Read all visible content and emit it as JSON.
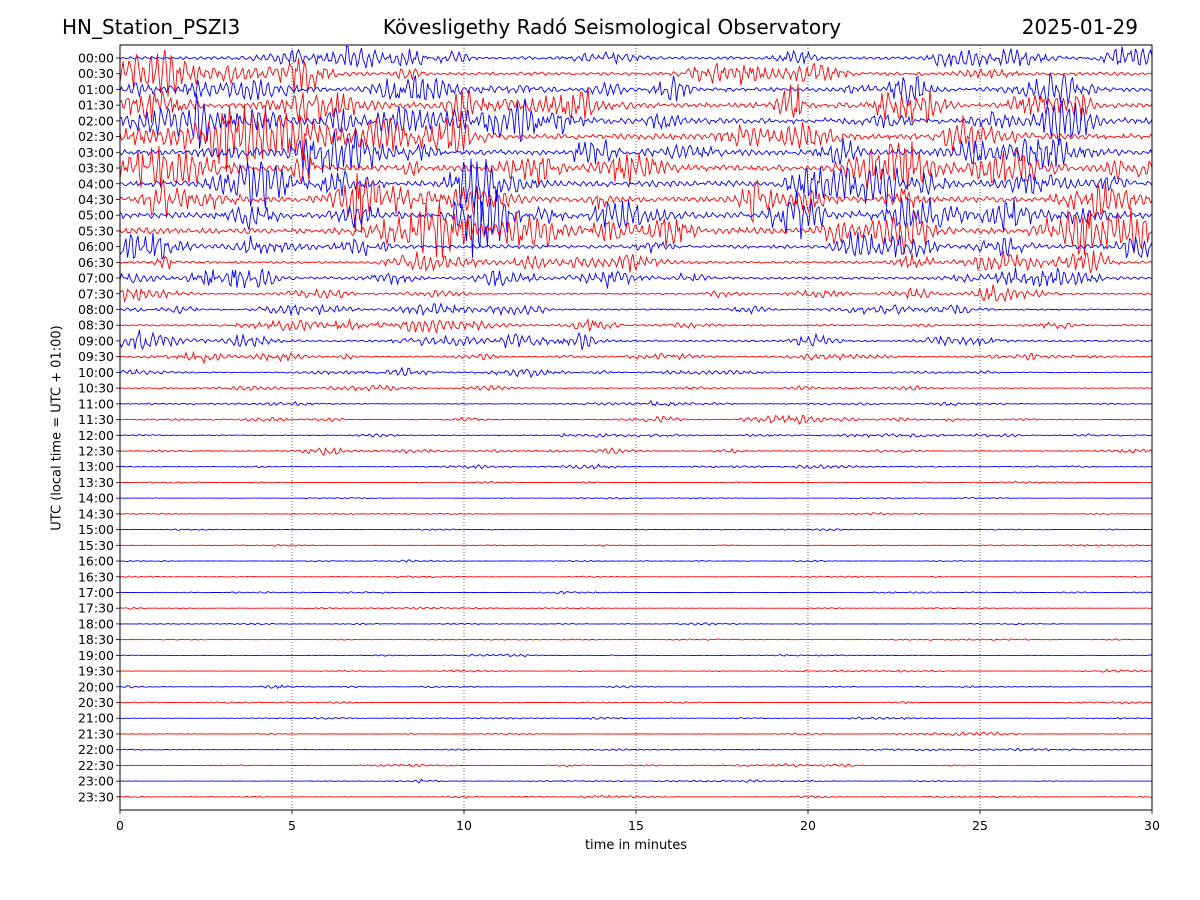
{
  "header": {
    "station": "HN_Station_PSZI3",
    "observatory": "Kövesligethy Radó Seismological Observatory",
    "date": "2025-01-29"
  },
  "chart_data": {
    "type": "line",
    "chart_kind": "helicorder",
    "title": "Kövesligethy Radó Seismological Observatory",
    "xlabel": "time in minutes",
    "ylabel": "UTC (local time = UTC + 01:00)",
    "xlim": [
      0,
      30
    ],
    "x_ticks": [
      "0",
      "5",
      "10",
      "15",
      "20",
      "25",
      "30"
    ],
    "vertical_gridlines_at_minutes": [
      5,
      10,
      15,
      20,
      25
    ],
    "grid": "vertical dotted",
    "row_labels": [
      "00:00",
      "00:30",
      "01:00",
      "01:30",
      "02:00",
      "02:30",
      "03:00",
      "03:30",
      "04:00",
      "04:30",
      "05:00",
      "05:30",
      "06:00",
      "06:30",
      "07:00",
      "07:30",
      "08:00",
      "08:30",
      "09:00",
      "09:30",
      "10:00",
      "10:30",
      "11:00",
      "11:30",
      "12:00",
      "12:30",
      "13:00",
      "13:30",
      "14:00",
      "14:30",
      "15:00",
      "15:30",
      "16:00",
      "16:30",
      "17:00",
      "17:30",
      "18:00",
      "18:30",
      "19:00",
      "19:30",
      "20:00",
      "20:30",
      "21:00",
      "21:30",
      "22:00",
      "22:30",
      "23:00",
      "23:30"
    ],
    "trace_colors": [
      "#0000ff",
      "#ff0000"
    ],
    "relative_amplitude": [
      0.7,
      0.8,
      1.0,
      1.3,
      1.4,
      1.3,
      1.3,
      1.4,
      1.4,
      1.4,
      1.5,
      1.5,
      0.9,
      0.6,
      0.6,
      0.35,
      0.35,
      0.4,
      0.45,
      0.3,
      0.2,
      0.18,
      0.15,
      0.18,
      0.15,
      0.2,
      0.12,
      0.06,
      0.05,
      0.05,
      0.05,
      0.05,
      0.06,
      0.05,
      0.07,
      0.06,
      0.06,
      0.05,
      0.06,
      0.06,
      0.08,
      0.06,
      0.07,
      0.06,
      0.08,
      0.07,
      0.06,
      0.07
    ]
  }
}
